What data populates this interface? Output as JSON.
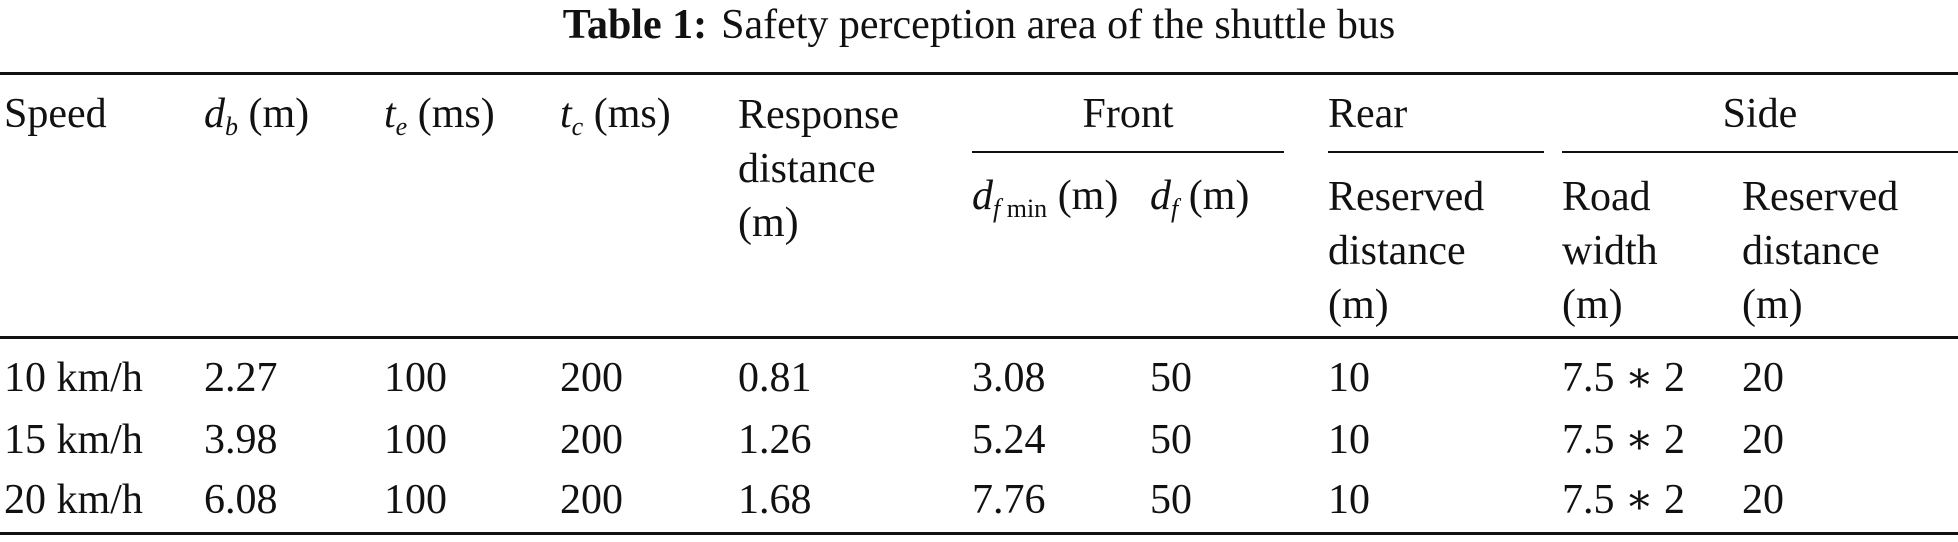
{
  "caption": {
    "label": "Table 1:",
    "title": "Safety perception area of the shuttle bus"
  },
  "headers": {
    "speed": "Speed",
    "db": {
      "var": "d",
      "sub": "b",
      "unit": "(m)"
    },
    "te": {
      "var": "t",
      "sub": "e",
      "unit": "(ms)"
    },
    "tc": {
      "var": "t",
      "sub": "c",
      "unit": "(ms)"
    },
    "response": {
      "line1": "Response",
      "line2": "distance",
      "line3": "(m)"
    },
    "front": {
      "label": "Front",
      "dfmin": {
        "var": "d",
        "sub": "f min",
        "unit": "(m)"
      },
      "df": {
        "var": "d",
        "sub": "f",
        "unit": "(m)"
      }
    },
    "rear": {
      "label": "Rear",
      "reserved": {
        "line1": "Reserved",
        "line2": "distance",
        "line3": "(m)"
      }
    },
    "side": {
      "label": "Side",
      "road": {
        "line1": "Road",
        "line2": "width",
        "line3": "(m)"
      },
      "reserved": {
        "line1": "Reserved",
        "line2": "distance",
        "line3": "(m)"
      }
    }
  },
  "rows": [
    {
      "speed": "10 km/h",
      "db": "2.27",
      "te": "100",
      "tc": "200",
      "response": "0.81",
      "dfmin": "3.08",
      "df": "50",
      "rear": "10",
      "road": "7.5 ∗ 2",
      "side": "20"
    },
    {
      "speed": "15 km/h",
      "db": "3.98",
      "te": "100",
      "tc": "200",
      "response": "1.26",
      "dfmin": "5.24",
      "df": "50",
      "rear": "10",
      "road": "7.5 ∗ 2",
      "side": "20"
    },
    {
      "speed": "20 km/h",
      "db": "6.08",
      "te": "100",
      "tc": "200",
      "response": "1.68",
      "dfmin": "7.76",
      "df": "50",
      "rear": "10",
      "road": "7.5 ∗ 2",
      "side": "20"
    }
  ]
}
